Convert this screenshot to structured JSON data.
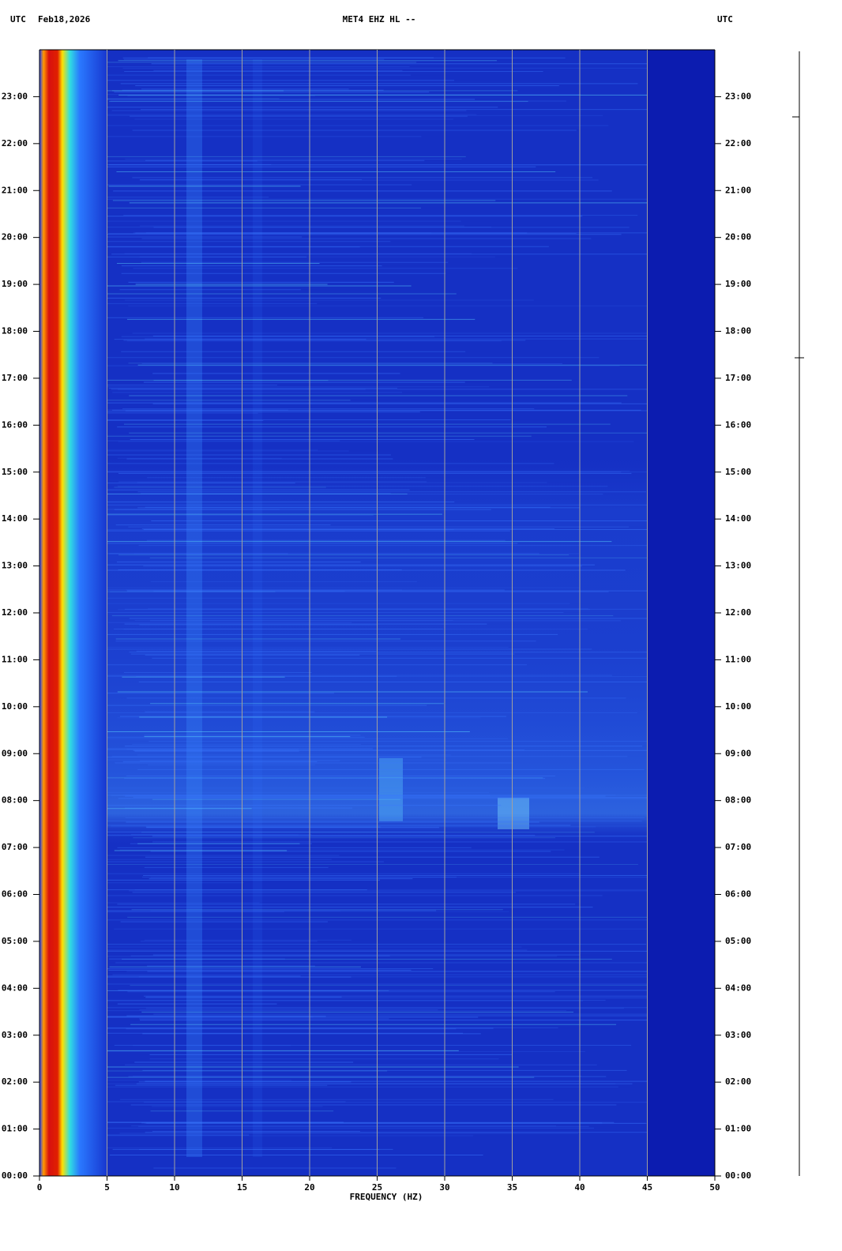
{
  "chart_data": {
    "type": "spectrogram",
    "title": "MET4 EHZ HL --",
    "date": "Feb18,2026",
    "time_zone_left": "UTC",
    "time_zone_right": "UTC",
    "xlabel": "FREQUENCY (HZ)",
    "xlim": [
      0,
      50
    ],
    "xticks": [
      0,
      5,
      10,
      15,
      20,
      25,
      30,
      35,
      40,
      45,
      50
    ],
    "ylim": [
      0,
      24
    ],
    "yticks": [
      {
        "value": 0,
        "label": "00:00"
      },
      {
        "value": 1,
        "label": "01:00"
      },
      {
        "value": 2,
        "label": "02:00"
      },
      {
        "value": 3,
        "label": "03:00"
      },
      {
        "value": 4,
        "label": "04:00"
      },
      {
        "value": 5,
        "label": "05:00"
      },
      {
        "value": 6,
        "label": "06:00"
      },
      {
        "value": 7,
        "label": "07:00"
      },
      {
        "value": 8,
        "label": "08:00"
      },
      {
        "value": 9,
        "label": "09:00"
      },
      {
        "value": 10,
        "label": "10:00"
      },
      {
        "value": 11,
        "label": "11:00"
      },
      {
        "value": 12,
        "label": "12:00"
      },
      {
        "value": 13,
        "label": "13:00"
      },
      {
        "value": 14,
        "label": "14:00"
      },
      {
        "value": 15,
        "label": "15:00"
      },
      {
        "value": 16,
        "label": "16:00"
      },
      {
        "value": 17,
        "label": "17:00"
      },
      {
        "value": 18,
        "label": "18:00"
      },
      {
        "value": 19,
        "label": "19:00"
      },
      {
        "value": 20,
        "label": "20:00"
      },
      {
        "value": 21,
        "label": "21:00"
      },
      {
        "value": 22,
        "label": "22:00"
      },
      {
        "value": 23,
        "label": "23:00"
      }
    ],
    "grid": true,
    "grid_color": "#a0a0a0"
  }
}
